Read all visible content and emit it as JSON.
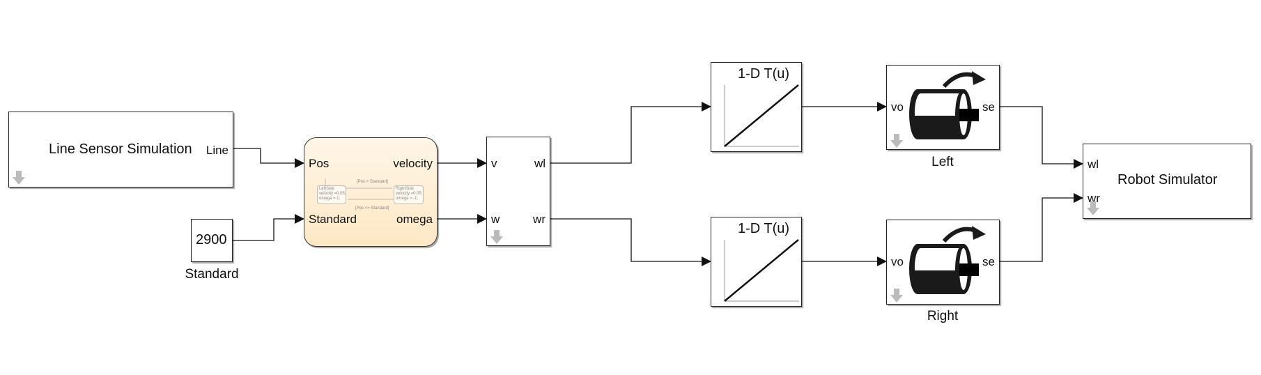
{
  "blocks": {
    "line_sensor": {
      "title": "Line Sensor Simulation",
      "out_port": "Line"
    },
    "constant": {
      "value": "2900",
      "caption": "Standard"
    },
    "stateflow": {
      "in_ports": [
        "Pos",
        "Standard"
      ],
      "out_ports": [
        "velocity",
        "omega"
      ],
      "left_state": {
        "name": "LeftSide",
        "line1": "velocity =0.05;",
        "line2": "omega = 1;"
      },
      "right_state": {
        "name": "RightSide",
        "line1": "velocity =0.05;",
        "line2": "omega = -1;"
      },
      "transition_top": "[Pos > Standard]",
      "transition_bottom": "[Pos <= Standard]"
    },
    "converter": {
      "in_ports": [
        "v",
        "w"
      ],
      "out_ports": [
        "wl",
        "wr"
      ]
    },
    "lookup_top": {
      "title": "1-D T(u)"
    },
    "lookup_bottom": {
      "title": "1-D T(u)"
    },
    "motor_left": {
      "in_port": "vo",
      "out_port": "se",
      "caption": "Left"
    },
    "motor_right": {
      "in_port": "vo",
      "out_port": "se",
      "caption": "Right"
    },
    "robot": {
      "title": "Robot Simulator",
      "in_ports": [
        "wl",
        "wr"
      ]
    }
  },
  "colors": {
    "stateflow_top": "#fff6e8",
    "stateflow_bottom": "#fde8c4",
    "line": "#111111",
    "icon": "#bbbbbb"
  }
}
